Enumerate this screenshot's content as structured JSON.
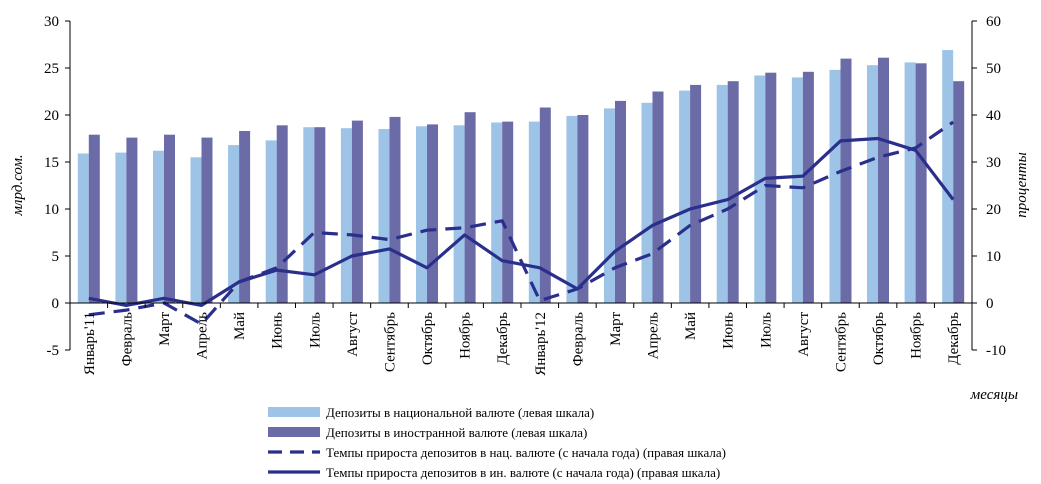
{
  "chart_data": {
    "type": "bar",
    "categories": [
      "Январь'11",
      "Февраль",
      "Март",
      "Апрель",
      "Май",
      "Июнь",
      "Июль",
      "Август",
      "Сентябрь",
      "Октябрь",
      "Ноябрь",
      "Декабрь",
      "Январь'12",
      "Февраль",
      "Март",
      "Апрель",
      "Май",
      "Июнь",
      "Июль",
      "Август",
      "Сентябрь",
      "Октябрь",
      "Ноябрь",
      "Декабрь"
    ],
    "ylabel": "млрд.сом.",
    "y2label": "проценты",
    "xlabel": "месяцы",
    "ylim": [
      -5,
      30
    ],
    "y2lim": [
      -10,
      60
    ],
    "yticks": [
      -5,
      0,
      5,
      10,
      15,
      20,
      25,
      30
    ],
    "y2ticks": [
      -10,
      0,
      10,
      20,
      30,
      40,
      50,
      60
    ],
    "grid": false,
    "legend_position": "bottom",
    "series": [
      {
        "name": "Депозиты в национальной валюте (левая шкала)",
        "type": "bar",
        "axis": "left",
        "color": "#9DC3E6",
        "values": [
          15.9,
          16.0,
          16.2,
          15.5,
          16.8,
          17.3,
          18.7,
          18.6,
          18.5,
          18.8,
          18.9,
          19.2,
          19.3,
          19.9,
          20.7,
          21.3,
          22.6,
          23.2,
          24.2,
          24.0,
          24.8,
          25.3,
          25.6,
          26.9
        ]
      },
      {
        "name": "Депозиты в иностранной валюте (левая шкала)",
        "type": "bar",
        "axis": "left",
        "color": "#6B6BA8",
        "values": [
          17.9,
          17.6,
          17.9,
          17.6,
          18.3,
          18.9,
          18.7,
          19.4,
          19.8,
          19.0,
          20.3,
          19.3,
          20.8,
          20.0,
          21.5,
          22.5,
          23.2,
          23.6,
          24.5,
          24.6,
          26.0,
          26.1,
          25.5,
          23.6
        ]
      },
      {
        "name": "Темпы прироста депозитов в нац. валюте (с начала года) (правая шкала)",
        "type": "line",
        "style": "dashed",
        "axis": "right",
        "color": "#2B2F8C",
        "values": [
          -2.5,
          -1.5,
          0.0,
          -4.5,
          4.5,
          7.5,
          15.0,
          14.5,
          13.5,
          15.5,
          16.0,
          17.5,
          0.5,
          3.0,
          7.5,
          10.5,
          16.5,
          20.0,
          25.0,
          24.5,
          28.0,
          31.0,
          33.0,
          38.5
        ]
      },
      {
        "name": "Темпы прироста депозитов в ин. валюте (с начала года) (правая шкала)",
        "type": "line",
        "style": "solid",
        "axis": "right",
        "color": "#2B2F8C",
        "values": [
          1.0,
          -0.5,
          1.0,
          -0.5,
          4.5,
          7.0,
          6.0,
          10.0,
          11.5,
          7.5,
          14.5,
          9.0,
          7.5,
          3.0,
          11.0,
          16.5,
          20.0,
          22.0,
          26.5,
          27.0,
          34.5,
          35.0,
          32.5,
          22.0
        ]
      }
    ]
  }
}
